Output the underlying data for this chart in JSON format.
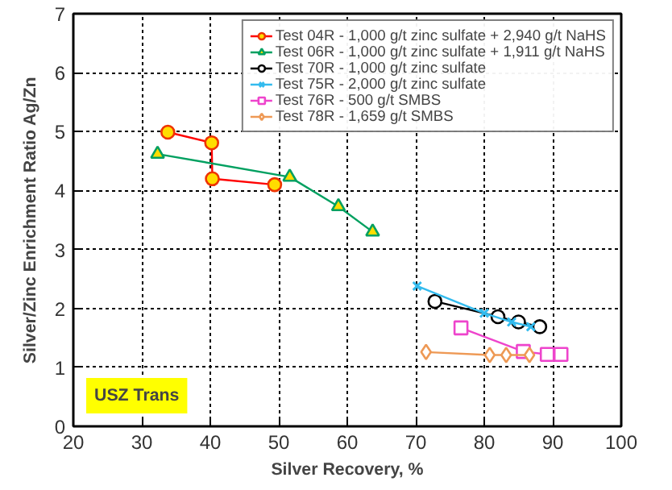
{
  "chart_data": {
    "type": "line",
    "xlabel": "Silver Recovery, %",
    "ylabel": "Silver/Zinc Enrichment Ratio Ag/Zn",
    "xlim": [
      20,
      100
    ],
    "xticks": [
      20,
      30,
      40,
      50,
      60,
      70,
      80,
      90,
      100
    ],
    "ylim": [
      0,
      7
    ],
    "yticks": [
      0,
      1,
      2,
      3,
      4,
      5,
      6,
      7
    ],
    "grid": true,
    "legend": "top right",
    "line_style": "solid",
    "annotations": [
      "USZ Trans"
    ],
    "series": [
      {
        "name": "Test 04R - 1,000 g/t zinc sulfate + 2,940 g/t NaHS",
        "color": "#ff0000",
        "marker": "circle",
        "x": [
          33.8,
          40.2,
          40.3,
          49.4
        ],
        "values": [
          4.99,
          4.81,
          4.2,
          4.1
        ]
      },
      {
        "name": "Test 06R - 1,000 g/t zinc sulfate + 1,911 g/t NaHS",
        "color": "#00a060",
        "marker": "triangle",
        "x": [
          32.3,
          51.6,
          58.7,
          63.7
        ],
        "values": [
          4.62,
          4.23,
          3.73,
          3.3
        ]
      },
      {
        "name": "Test 70R - 1,000 g/t zinc sulfate",
        "color": "#000000",
        "marker": "circle",
        "x": [
          72.8,
          82.0,
          85.0,
          88.1
        ],
        "values": [
          2.12,
          1.86,
          1.77,
          1.69
        ]
      },
      {
        "name": "Test 75R - 2,000 g/t zinc sulfate",
        "color": "#33bbee",
        "marker": "cross",
        "x": [
          70.2,
          80.0,
          84.0,
          86.8
        ],
        "values": [
          2.38,
          1.92,
          1.77,
          1.69
        ]
      },
      {
        "name": "Test 76R - 500 g/t SMBS",
        "color": "#ee44cc",
        "marker": "square",
        "x": [
          76.6,
          85.7,
          89.2,
          91.2
        ],
        "values": [
          1.67,
          1.27,
          1.22,
          1.22
        ]
      },
      {
        "name": "Test 78R - 1,659 g/t SMBS",
        "color": "#ee9955",
        "marker": "diamond",
        "x": [
          71.5,
          80.8,
          83.2,
          86.6
        ],
        "values": [
          1.26,
          1.21,
          1.21,
          1.21
        ]
      }
    ]
  }
}
